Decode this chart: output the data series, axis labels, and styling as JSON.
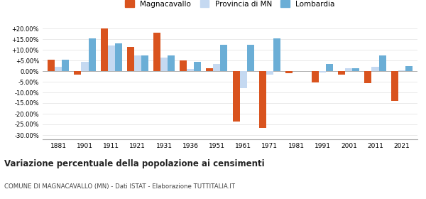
{
  "years": [
    1881,
    1901,
    1911,
    1921,
    1931,
    1936,
    1951,
    1961,
    1971,
    1981,
    1991,
    2001,
    2011,
    2021
  ],
  "magnacavallo": [
    5.5,
    -1.5,
    20.0,
    11.5,
    18.0,
    5.0,
    1.5,
    -23.5,
    -26.5,
    -1.0,
    -5.2,
    -1.5,
    -5.5,
    -14.0
  ],
  "provincia_mn": [
    2.0,
    4.5,
    12.0,
    7.5,
    6.5,
    1.0,
    3.5,
    -8.0,
    -1.5,
    0.0,
    -0.5,
    1.5,
    2.0,
    0.5
  ],
  "lombardia": [
    5.5,
    15.5,
    13.0,
    7.5,
    7.5,
    4.5,
    12.5,
    12.5,
    15.5,
    0.0,
    3.5,
    1.5,
    7.5,
    2.5
  ],
  "color_magnacavallo": "#d9531e",
  "color_provincia": "#c5d9f1",
  "color_lombardia": "#6baed6",
  "title": "Variazione percentuale della popolazione ai censimenti",
  "subtitle": "COMUNE DI MAGNACAVALLO (MN) - Dati ISTAT - Elaborazione TUTTITALIA.IT",
  "ylim": [
    -32,
    24
  ],
  "yticks": [
    -30,
    -25,
    -20,
    -15,
    -10,
    -5,
    0,
    5,
    10,
    15,
    20
  ],
  "ytick_labels": [
    "-30.00%",
    "-25.00%",
    "-20.00%",
    "-15.00%",
    "-10.00%",
    "-5.00%",
    "0.00%",
    "+5.00%",
    "+10.00%",
    "+15.00%",
    "+20.00%"
  ]
}
